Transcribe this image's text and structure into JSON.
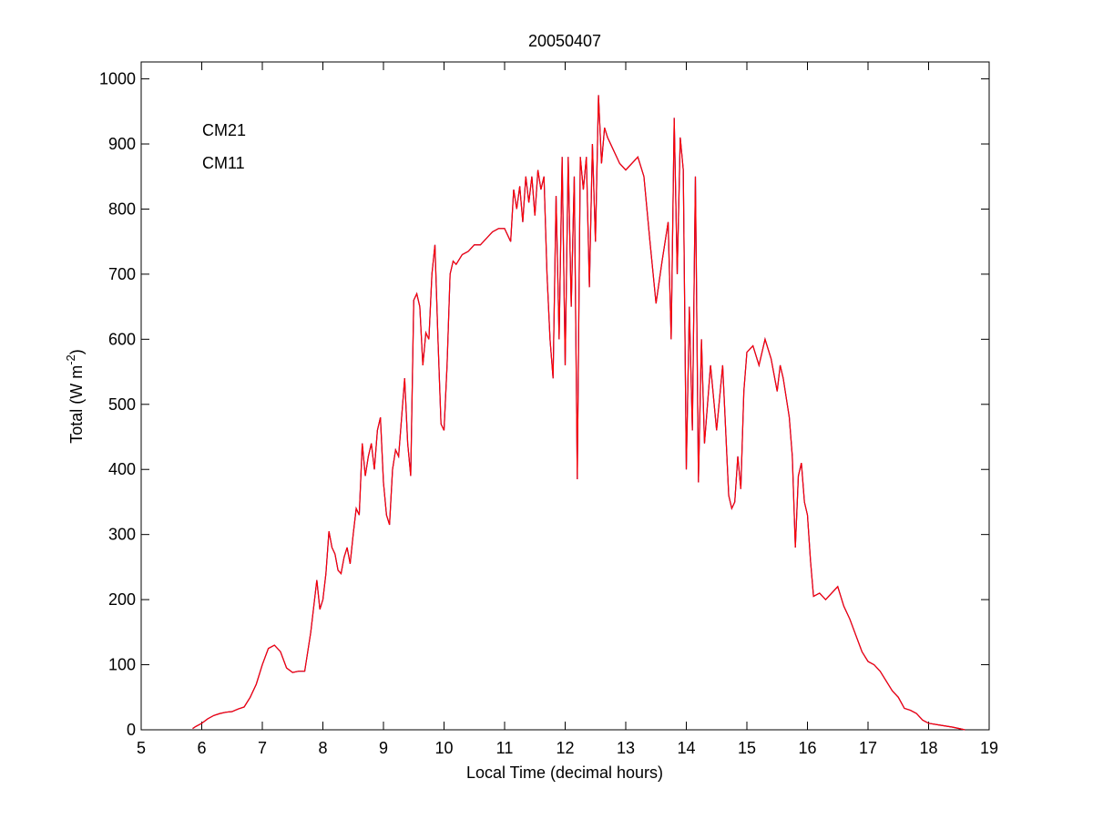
{
  "chart_data": {
    "type": "line",
    "title": "20050407",
    "xlabel": "Local Time (decimal hours)",
    "ylabel": [
      "Total (W m",
      "-2",
      ")"
    ],
    "xlim": [
      5,
      19
    ],
    "xticks": [
      5,
      6,
      7,
      8,
      9,
      10,
      11,
      12,
      13,
      14,
      15,
      16,
      17,
      18,
      19
    ],
    "ylim": [
      0,
      1026
    ],
    "yticks": [
      0,
      100,
      200,
      300,
      400,
      500,
      600,
      700,
      800,
      900,
      1000
    ],
    "x": [
      5.85,
      5.9,
      6.0,
      6.1,
      6.2,
      6.3,
      6.4,
      6.5,
      6.6,
      6.7,
      6.8,
      6.9,
      7.0,
      7.1,
      7.2,
      7.3,
      7.4,
      7.5,
      7.6,
      7.7,
      7.8,
      7.9,
      7.95,
      8.0,
      8.05,
      8.1,
      8.15,
      8.2,
      8.25,
      8.3,
      8.35,
      8.4,
      8.45,
      8.5,
      8.55,
      8.6,
      8.65,
      8.7,
      8.75,
      8.8,
      8.85,
      8.9,
      8.95,
      9.0,
      9.05,
      9.1,
      9.15,
      9.2,
      9.25,
      9.3,
      9.35,
      9.4,
      9.45,
      9.5,
      9.55,
      9.6,
      9.65,
      9.7,
      9.75,
      9.8,
      9.85,
      9.9,
      9.95,
      10.0,
      10.05,
      10.1,
      10.15,
      10.2,
      10.3,
      10.4,
      10.5,
      10.6,
      10.7,
      10.8,
      10.9,
      11.0,
      11.1,
      11.15,
      11.2,
      11.25,
      11.3,
      11.35,
      11.4,
      11.45,
      11.5,
      11.55,
      11.6,
      11.65,
      11.7,
      11.75,
      11.8,
      11.85,
      11.9,
      11.95,
      12.0,
      12.05,
      12.1,
      12.15,
      12.2,
      12.25,
      12.3,
      12.35,
      12.4,
      12.45,
      12.5,
      12.55,
      12.6,
      12.65,
      12.7,
      12.8,
      12.9,
      13.0,
      13.1,
      13.2,
      13.3,
      13.4,
      13.5,
      13.6,
      13.7,
      13.75,
      13.8,
      13.85,
      13.9,
      13.95,
      14.0,
      14.05,
      14.1,
      14.15,
      14.2,
      14.25,
      14.3,
      14.4,
      14.5,
      14.6,
      14.7,
      14.75,
      14.8,
      14.85,
      14.9,
      14.95,
      15.0,
      15.1,
      15.2,
      15.3,
      15.4,
      15.5,
      15.55,
      15.6,
      15.7,
      15.75,
      15.8,
      15.85,
      15.9,
      15.95,
      16.0,
      16.05,
      16.1,
      16.2,
      16.3,
      16.4,
      16.5,
      16.6,
      16.7,
      16.8,
      16.9,
      17.0,
      17.1,
      17.2,
      17.3,
      17.4,
      17.5,
      17.6,
      17.7,
      17.8,
      17.9,
      18.0,
      18.2,
      18.4,
      18.6
    ],
    "series": [
      {
        "name": "CM21",
        "color": "#0000c0",
        "values": [
          2,
          5,
          10,
          17,
          22,
          25,
          27,
          28,
          32,
          35,
          50,
          70,
          100,
          125,
          130,
          120,
          95,
          88,
          90,
          90,
          150,
          230,
          185,
          200,
          240,
          305,
          280,
          270,
          245,
          240,
          265,
          280,
          255,
          300,
          340,
          330,
          440,
          390,
          420,
          440,
          400,
          460,
          480,
          380,
          330,
          315,
          400,
          430,
          420,
          480,
          540,
          440,
          390,
          660,
          670,
          650,
          560,
          610,
          600,
          700,
          745,
          600,
          470,
          460,
          560,
          700,
          720,
          715,
          730,
          735,
          745,
          745,
          755,
          765,
          770,
          770,
          750,
          830,
          800,
          835,
          780,
          850,
          810,
          850,
          790,
          860,
          830,
          850,
          700,
          600,
          540,
          820,
          600,
          880,
          560,
          880,
          650,
          850,
          385,
          880,
          830,
          880,
          680,
          900,
          750,
          975,
          870,
          925,
          910,
          890,
          870,
          860,
          870,
          880,
          850,
          750,
          655,
          720,
          780,
          600,
          940,
          700,
          910,
          860,
          400,
          650,
          460,
          850,
          380,
          600,
          440,
          560,
          460,
          560,
          360,
          340,
          350,
          420,
          370,
          520,
          580,
          590,
          560,
          600,
          570,
          520,
          560,
          540,
          480,
          420,
          280,
          390,
          410,
          350,
          330,
          260,
          205,
          210,
          200,
          210,
          220,
          190,
          170,
          145,
          120,
          105,
          100,
          90,
          75,
          60,
          50,
          33,
          30,
          25,
          15,
          10,
          7,
          4,
          0
        ]
      },
      {
        "name": "CM11",
        "color": "#ff0000",
        "values": [
          2,
          5,
          10,
          17,
          22,
          25,
          27,
          28,
          32,
          35,
          50,
          70,
          100,
          125,
          130,
          120,
          95,
          88,
          90,
          90,
          150,
          230,
          185,
          200,
          240,
          305,
          280,
          270,
          245,
          240,
          265,
          280,
          255,
          300,
          340,
          330,
          440,
          390,
          420,
          440,
          400,
          460,
          480,
          380,
          330,
          315,
          400,
          430,
          420,
          480,
          540,
          440,
          390,
          660,
          670,
          650,
          560,
          610,
          600,
          700,
          745,
          600,
          470,
          460,
          560,
          700,
          720,
          715,
          730,
          735,
          745,
          745,
          755,
          765,
          770,
          770,
          750,
          830,
          800,
          835,
          780,
          850,
          810,
          850,
          790,
          860,
          830,
          850,
          700,
          600,
          540,
          820,
          600,
          880,
          560,
          880,
          650,
          850,
          385,
          880,
          830,
          880,
          680,
          900,
          750,
          975,
          870,
          925,
          910,
          890,
          870,
          860,
          870,
          880,
          850,
          750,
          655,
          720,
          780,
          600,
          940,
          700,
          910,
          860,
          400,
          650,
          460,
          850,
          380,
          600,
          440,
          560,
          460,
          560,
          360,
          340,
          350,
          420,
          370,
          520,
          580,
          590,
          560,
          600,
          570,
          520,
          560,
          540,
          480,
          420,
          280,
          390,
          410,
          350,
          330,
          260,
          205,
          210,
          200,
          210,
          220,
          190,
          170,
          145,
          120,
          105,
          100,
          90,
          75,
          60,
          50,
          33,
          30,
          25,
          15,
          10,
          7,
          4,
          0
        ]
      }
    ]
  }
}
